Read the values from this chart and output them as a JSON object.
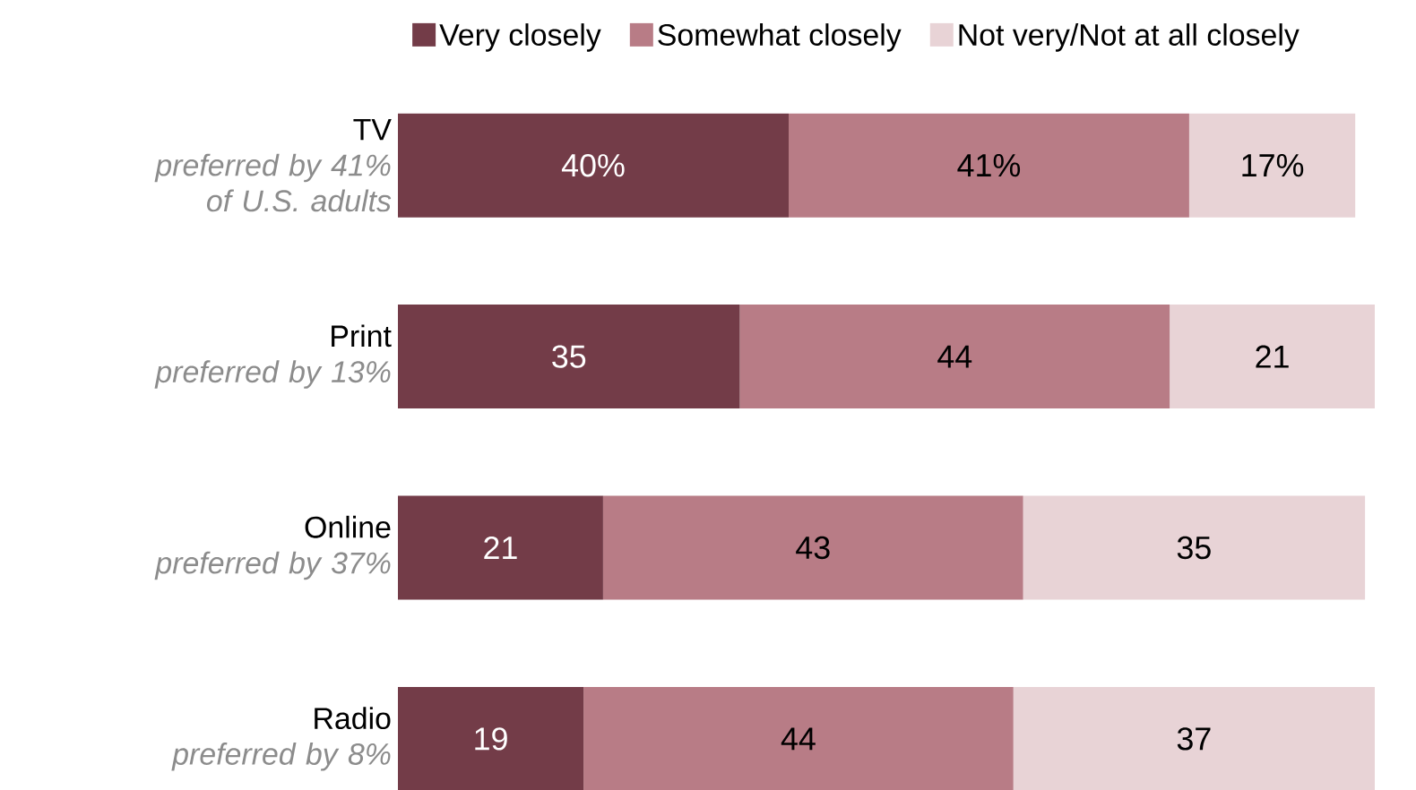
{
  "chart_data": {
    "type": "bar",
    "orientation": "horizontal",
    "stacked": true,
    "legend": "top",
    "categories": [
      "TV",
      "Print",
      "Online",
      "Radio"
    ],
    "annotations": [
      "preferred by 41% of U.S. adults",
      "preferred by 13%",
      "preferred by 37%",
      "preferred by 8%"
    ],
    "series": [
      {
        "name": "Very closely",
        "color": "#733c48",
        "values": [
          40,
          35,
          21,
          19
        ],
        "value_labels": [
          "40%",
          "35",
          "21",
          "19"
        ]
      },
      {
        "name": "Somewhat closely",
        "color": "#b87c86",
        "values": [
          41,
          44,
          43,
          44
        ],
        "value_labels": [
          "41%",
          "44",
          "43",
          "44"
        ]
      },
      {
        "name": "Not very/Not at all closely",
        "color": "#e8d3d6",
        "values": [
          17,
          21,
          35,
          37
        ],
        "value_labels": [
          "17%",
          "21",
          "35",
          "37"
        ]
      }
    ]
  }
}
